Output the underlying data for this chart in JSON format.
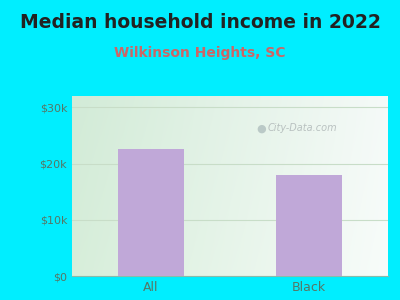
{
  "title": "Median household income in 2022",
  "subtitle": "Wilkinson Heights, SC",
  "categories": [
    "All",
    "Black"
  ],
  "values": [
    22500,
    18000
  ],
  "bar_color": "#c0a8d8",
  "background_color": "#00eeff",
  "yticks": [
    0,
    10000,
    20000,
    30000
  ],
  "ytick_labels": [
    "$0",
    "$10k",
    "$20k",
    "$30k"
  ],
  "ylim": [
    0,
    32000
  ],
  "title_fontsize": 13.5,
  "subtitle_fontsize": 10,
  "subtitle_color": "#cc6666",
  "tick_label_color": "#557766",
  "grid_color": "#c8ddc8",
  "watermark": "City-Data.com",
  "bar_width": 0.42,
  "title_color": "#222222"
}
